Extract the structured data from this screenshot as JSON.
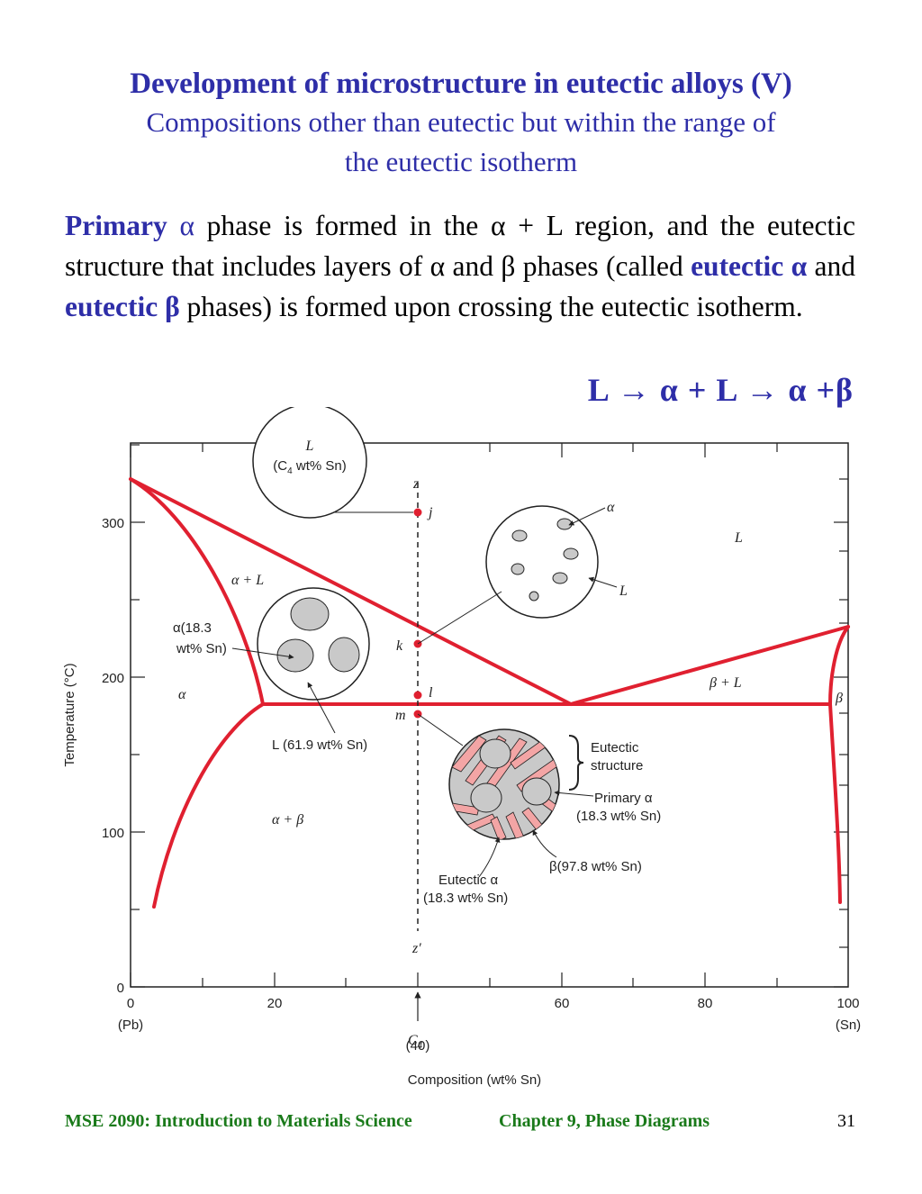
{
  "title": {
    "main": "Development of microstructure in eutectic alloys (V)",
    "sub_line1": "Compositions other than eutectic but within the range of",
    "sub_line2": "the eutectic isotherm"
  },
  "paragraph": {
    "p1": "Primary",
    "alpha": "α",
    "p2": " phase is formed in the ",
    "p3": " + L region, and the eutectic structure that includes layers of ",
    "p4": " and ",
    "beta": "β",
    "p5": " phases (called ",
    "kw_eutectic": "eutectic",
    "p6": " and ",
    "p7": " phases) is formed upon crossing the eutectic isotherm."
  },
  "equation": "L → α + L → α +β",
  "diagram": {
    "ylabel": "Temperature (°C)",
    "xlabel": "Composition (wt% Sn)",
    "y_ticks": [
      "0",
      "100",
      "200",
      "300"
    ],
    "x_ticks": [
      "0",
      "20",
      "40",
      "60",
      "80",
      "100"
    ],
    "x_end_left": "(Pb)",
    "x_end_right": "(Sn)",
    "c4_label": "C",
    "c4_sub": "4",
    "c4_value": "(40)",
    "regions": {
      "L": "L",
      "alpha_L": "α + L",
      "alpha": "α",
      "alpha_beta": "α + β",
      "beta_L": "β + L",
      "beta": "β"
    },
    "points": {
      "z": "z",
      "j": "j",
      "k": "k",
      "l": "l",
      "m": "m",
      "z_prime": "z′"
    },
    "annotations": {
      "liquid_circle_l1": "L",
      "liquid_circle_l2_pre": "(C",
      "liquid_circle_l2_sub": "4",
      "liquid_circle_l2_post": " wt% Sn)",
      "alpha_small": "α",
      "liquid_small": "L",
      "alpha183_l1": "α(18.3",
      "alpha183_l2": "wt% Sn)",
      "liquid619": "L (61.9 wt% Sn)",
      "eutectic_structure_l1": "Eutectic",
      "eutectic_structure_l2": "structure",
      "primary_alpha_l1": "Primary α",
      "primary_alpha_l2": "(18.3 wt% Sn)",
      "beta978": "β(97.8 wt% Sn)",
      "eutectic_alpha_l1": "Eutectic α",
      "eutectic_alpha_l2": "(18.3 wt% Sn)"
    },
    "colors": {
      "phase_line": "#e02030",
      "point": "#e02030",
      "grain": "#c9c9c9",
      "lamella": "#f3a5a5"
    }
  },
  "footer": {
    "course": "MSE 2090: Introduction to Materials Science",
    "chapter": "Chapter 9, Phase Diagrams",
    "page": "31"
  }
}
